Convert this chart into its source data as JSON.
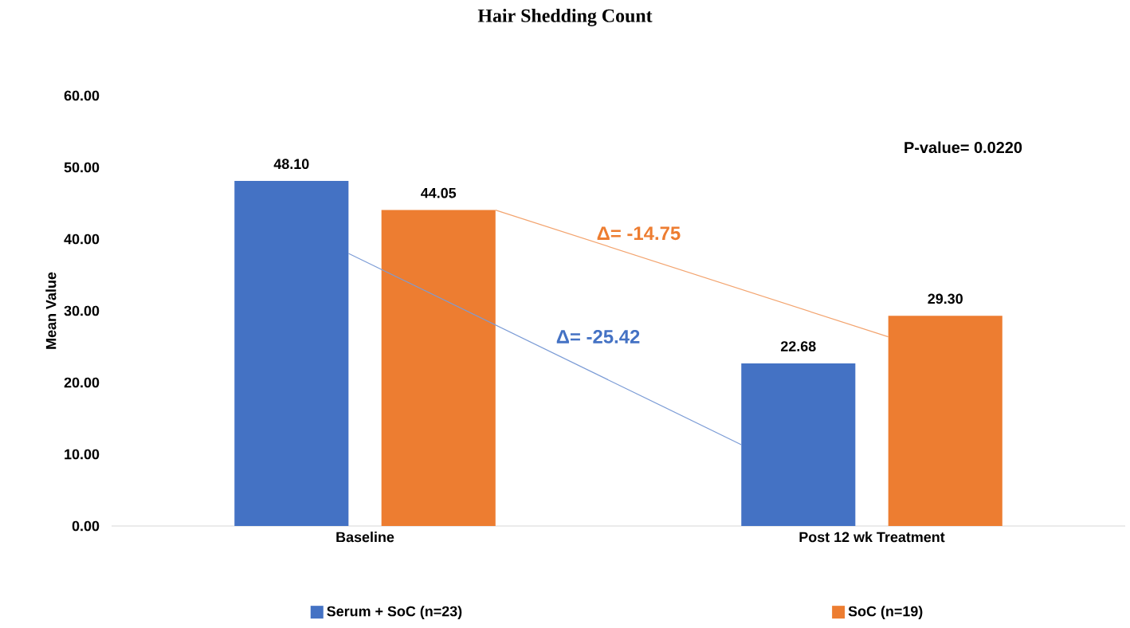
{
  "chart_data": {
    "type": "bar",
    "title": "Hair Shedding Count",
    "ylabel": "Mean Value",
    "categories": [
      "Baseline",
      "Post 12 wk Treatment"
    ],
    "series": [
      {
        "name": "Serum + SoC (n=23)",
        "color": "#4472c4",
        "values": [
          48.1,
          22.68
        ],
        "value_labels": [
          "48.10",
          "22.68"
        ]
      },
      {
        "name": "SoC (n=19)",
        "color": "#ed7d31",
        "values": [
          44.05,
          29.3
        ],
        "value_labels": [
          "44.05",
          "29.30"
        ]
      }
    ],
    "ylim": [
      0,
      60
    ],
    "yticks": [
      {
        "value": 0,
        "label": "0.00"
      },
      {
        "value": 10,
        "label": "10.00"
      },
      {
        "value": 20,
        "label": "20.00"
      },
      {
        "value": 30,
        "label": "30.00"
      },
      {
        "value": 40,
        "label": "40.00"
      },
      {
        "value": 50,
        "label": "50.00"
      },
      {
        "value": 60,
        "label": "60.00"
      }
    ],
    "annotations": [
      "P-value= 0.0220",
      "Δ= -25.42",
      "Δ= -14.75"
    ],
    "grid": false,
    "legend": "bottom"
  }
}
